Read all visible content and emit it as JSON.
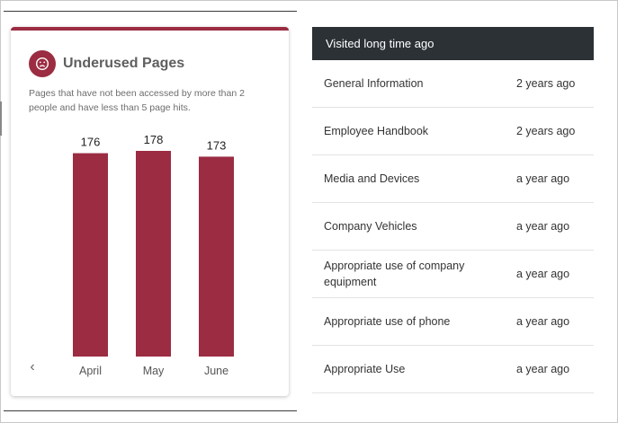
{
  "card": {
    "title": "Underused Pages",
    "description": "Pages that have not been accessed by more than 2 people and have less than 5 page hits.",
    "icon": "sad-face-icon",
    "accent_color": "#9b2c42"
  },
  "chart_data": {
    "type": "bar",
    "categories": [
      "April",
      "May",
      "June"
    ],
    "values": [
      176,
      178,
      173
    ],
    "title": "",
    "xlabel": "",
    "ylabel": "",
    "color": "#9b2c42"
  },
  "table": {
    "header": "Visited long time ago",
    "rows": [
      {
        "name": "General Information",
        "when": "2 years ago"
      },
      {
        "name": "Employee Handbook",
        "when": "2 years ago"
      },
      {
        "name": "Media and Devices",
        "when": "a year ago"
      },
      {
        "name": "Company Vehicles",
        "when": "a year ago"
      },
      {
        "name": "Appropriate use of company equipment",
        "when": "a year ago"
      },
      {
        "name": "Appropriate use of phone",
        "when": "a year ago"
      },
      {
        "name": "Appropriate Use",
        "when": "a year ago"
      }
    ]
  }
}
